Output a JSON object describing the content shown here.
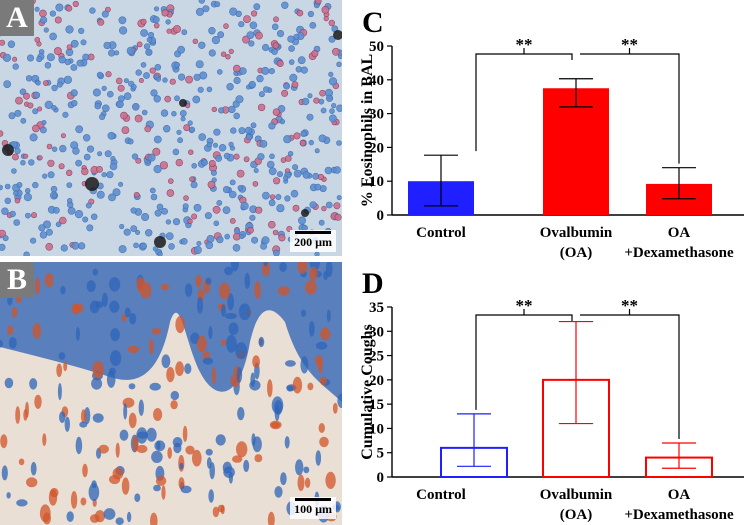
{
  "panels": {
    "A": {
      "letter": "A",
      "scale_label": "200 µm"
    },
    "B": {
      "letter": "B",
      "scale_label": "100 µm"
    }
  },
  "chart_data": [
    {
      "panel": "C",
      "type": "bar",
      "style": "filled",
      "ylabel": "% Eosinophils in BAL",
      "ylim": [
        0,
        50
      ],
      "yticks": [
        0,
        10,
        20,
        30,
        40,
        50
      ],
      "categories": [
        [
          "Control"
        ],
        [
          "Ovalbumin",
          "(OA)"
        ],
        [
          "OA",
          "+Dexamethasone"
        ]
      ],
      "values": [
        10,
        37.5,
        9.2
      ],
      "errors": [
        [
          2.7,
          17.7
        ],
        [
          32,
          40.3
        ],
        [
          4.8,
          14
        ]
      ],
      "colors": [
        "#1f1fff",
        "#ff0000",
        "#ff0000"
      ],
      "significance": [
        {
          "between": [
            0,
            1
          ],
          "label": "**"
        },
        {
          "between": [
            1,
            2
          ],
          "label": "**"
        }
      ]
    },
    {
      "panel": "D",
      "type": "bar",
      "style": "outline",
      "ylabel": "Cumulative Coughs",
      "ylim": [
        0,
        35
      ],
      "yticks": [
        0,
        5,
        10,
        15,
        20,
        25,
        30,
        35
      ],
      "categories": [
        [
          "Control"
        ],
        [
          "Ovalbumin",
          "(OA)"
        ],
        [
          "OA",
          "+Dexamethasone"
        ]
      ],
      "values": [
        6,
        20,
        4
      ],
      "errors": [
        [
          2.2,
          13
        ],
        [
          11,
          32
        ],
        [
          1.8,
          7
        ]
      ],
      "colors": [
        "#1f1fff",
        "#ff0000",
        "#ff0000"
      ],
      "significance": [
        {
          "between": [
            0,
            1
          ],
          "label": "**"
        },
        {
          "between": [
            1,
            2
          ],
          "label": "**"
        }
      ]
    }
  ]
}
